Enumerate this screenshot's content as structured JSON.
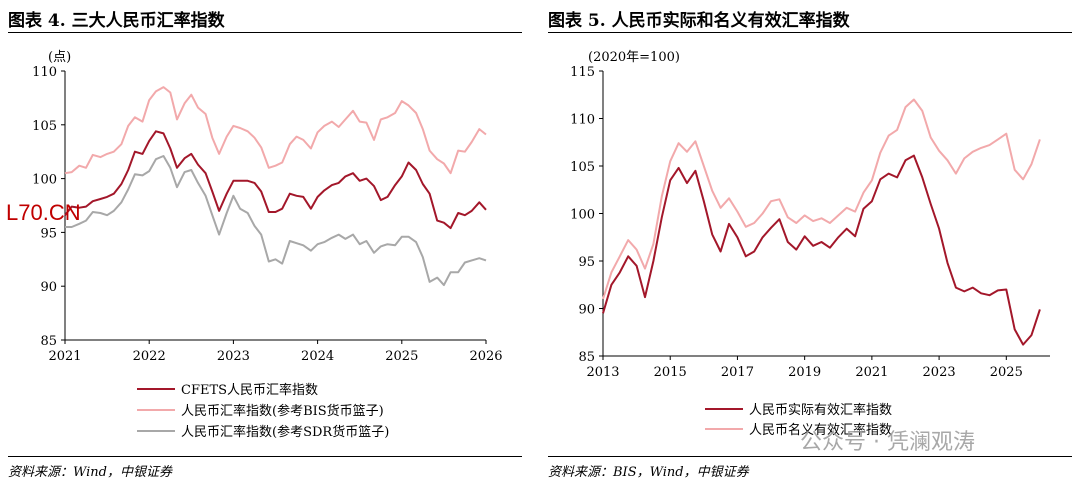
{
  "left": {
    "title": "图表 4. 三大人民币汇率指数",
    "source": "资料来源：Wind，中银证券"
  },
  "right": {
    "title": "图表 5. 人民币实际和名义有效汇率指数",
    "source": "资料来源：BIS，Wind，中银证券"
  },
  "overlay": {
    "logo": "L70.CN",
    "watermark": "公众号 · 凭澜观涛"
  },
  "chart_data": [
    {
      "type": "line",
      "unit_label": "(点)",
      "ylim": [
        85,
        110
      ],
      "yticks": [
        85,
        90,
        95,
        100,
        105,
        110
      ],
      "xlim": [
        2021,
        2026
      ],
      "xticks": [
        "2021",
        "2022",
        "2023",
        "2024",
        "2025",
        "2026"
      ],
      "grid": false,
      "legend_position": "bottom",
      "series": [
        {
          "name": "CFETS人民币汇率指数",
          "color": "#a3172a",
          "x": [
            2021.0,
            2021.08,
            2021.17,
            2021.25,
            2021.33,
            2021.42,
            2021.5,
            2021.58,
            2021.67,
            2021.75,
            2021.83,
            2021.92,
            2022.0,
            2022.08,
            2022.17,
            2022.25,
            2022.33,
            2022.42,
            2022.5,
            2022.58,
            2022.67,
            2022.75,
            2022.83,
            2022.92,
            2023.0,
            2023.08,
            2023.17,
            2023.25,
            2023.33,
            2023.42,
            2023.5,
            2023.58,
            2023.67,
            2023.75,
            2023.83,
            2023.92,
            2024.0,
            2024.08,
            2024.17,
            2024.25,
            2024.33,
            2024.42,
            2024.5,
            2024.58,
            2024.67,
            2024.75,
            2024.83,
            2024.92,
            2025.0,
            2025.08,
            2025.17,
            2025.25,
            2025.33,
            2025.42,
            2025.5,
            2025.58,
            2025.67,
            2025.75,
            2025.83,
            2025.92,
            2026.0
          ],
          "y": [
            96.6,
            97.4,
            97.3,
            97.4,
            97.9,
            98.1,
            98.3,
            98.6,
            99.5,
            100.8,
            102.5,
            102.3,
            103.5,
            104.4,
            104.2,
            102.8,
            101.0,
            101.9,
            102.3,
            101.3,
            100.5,
            98.8,
            97.0,
            98.6,
            99.8,
            99.8,
            99.8,
            99.6,
            98.8,
            96.9,
            96.9,
            97.2,
            98.6,
            98.4,
            98.3,
            97.2,
            98.3,
            98.9,
            99.4,
            99.6,
            100.2,
            100.5,
            99.8,
            100.0,
            99.3,
            98.0,
            98.3,
            99.4,
            100.2,
            101.5,
            100.8,
            99.5,
            98.6,
            96.1,
            95.9,
            95.4,
            96.8,
            96.6,
            97.0,
            97.8,
            97.1
          ]
        },
        {
          "name": "人民币汇率指数(参考BIS货币篮子)",
          "color": "#f2a9ab",
          "x": [
            2021.0,
            2021.08,
            2021.17,
            2021.25,
            2021.33,
            2021.42,
            2021.5,
            2021.58,
            2021.67,
            2021.75,
            2021.83,
            2021.92,
            2022.0,
            2022.08,
            2022.17,
            2022.25,
            2022.33,
            2022.42,
            2022.5,
            2022.58,
            2022.67,
            2022.75,
            2022.83,
            2022.92,
            2023.0,
            2023.08,
            2023.17,
            2023.25,
            2023.33,
            2023.42,
            2023.5,
            2023.58,
            2023.67,
            2023.75,
            2023.83,
            2023.92,
            2024.0,
            2024.08,
            2024.17,
            2024.25,
            2024.33,
            2024.42,
            2024.5,
            2024.58,
            2024.67,
            2024.75,
            2024.83,
            2024.92,
            2025.0,
            2025.08,
            2025.17,
            2025.25,
            2025.33,
            2025.42,
            2025.5,
            2025.58,
            2025.67,
            2025.75,
            2025.83,
            2025.92,
            2026.0
          ],
          "y": [
            100.5,
            100.6,
            101.2,
            101.0,
            102.2,
            102.0,
            102.3,
            102.5,
            103.2,
            104.9,
            105.7,
            105.3,
            107.3,
            108.1,
            108.5,
            108.0,
            105.5,
            107.0,
            107.8,
            106.6,
            106.0,
            103.8,
            102.3,
            103.9,
            104.9,
            104.7,
            104.4,
            103.8,
            102.9,
            101.0,
            101.2,
            101.5,
            103.2,
            103.9,
            103.6,
            102.8,
            104.3,
            104.9,
            105.3,
            104.8,
            105.5,
            106.3,
            105.3,
            105.2,
            103.6,
            105.5,
            105.7,
            106.1,
            107.2,
            106.8,
            106.1,
            104.6,
            102.6,
            101.8,
            101.4,
            100.5,
            102.6,
            102.5,
            103.4,
            104.6,
            104.1
          ]
        },
        {
          "name": "人民币汇率指数(参考SDR货币篮子)",
          "color": "#a8a8a8",
          "x": [
            2021.0,
            2021.08,
            2021.17,
            2021.25,
            2021.33,
            2021.42,
            2021.5,
            2021.58,
            2021.67,
            2021.75,
            2021.83,
            2021.92,
            2022.0,
            2022.08,
            2022.17,
            2022.25,
            2022.33,
            2022.42,
            2022.5,
            2022.58,
            2022.67,
            2022.75,
            2022.83,
            2022.92,
            2023.0,
            2023.08,
            2023.17,
            2023.25,
            2023.33,
            2023.42,
            2023.5,
            2023.58,
            2023.67,
            2023.75,
            2023.83,
            2023.92,
            2024.0,
            2024.08,
            2024.17,
            2024.25,
            2024.33,
            2024.42,
            2024.5,
            2024.58,
            2024.67,
            2024.75,
            2024.83,
            2024.92,
            2025.0,
            2025.08,
            2025.17,
            2025.25,
            2025.33,
            2025.42,
            2025.5,
            2025.58,
            2025.67,
            2025.75,
            2025.83,
            2025.92,
            2026.0
          ],
          "y": [
            95.5,
            95.5,
            95.8,
            96.1,
            96.9,
            96.8,
            96.6,
            97.0,
            97.8,
            99.0,
            100.4,
            100.3,
            100.7,
            101.8,
            102.1,
            101.0,
            99.2,
            100.6,
            100.8,
            99.6,
            98.4,
            96.6,
            94.8,
            96.8,
            98.4,
            97.2,
            96.8,
            95.6,
            94.8,
            92.3,
            92.5,
            92.1,
            94.2,
            94.0,
            93.8,
            93.3,
            93.9,
            94.1,
            94.5,
            94.8,
            94.4,
            94.8,
            93.9,
            94.2,
            93.1,
            93.7,
            93.9,
            93.8,
            94.6,
            94.6,
            94.1,
            92.7,
            90.4,
            90.8,
            90.1,
            91.3,
            91.3,
            92.2,
            92.4,
            92.6,
            92.4
          ]
        }
      ]
    },
    {
      "type": "line",
      "unit_label": "(2020年=100)",
      "ylim": [
        85,
        115
      ],
      "yticks": [
        85,
        90,
        95,
        100,
        105,
        110,
        115
      ],
      "xlim": [
        2013,
        2026.3
      ],
      "xticks": [
        "2013",
        "2015",
        "2017",
        "2019",
        "2021",
        "2023",
        "2025"
      ],
      "grid": false,
      "legend_position": "bottom",
      "series": [
        {
          "name": "人民币实际有效汇率指数",
          "color": "#a3172a",
          "x": [
            2013.0,
            2013.25,
            2013.5,
            2013.75,
            2014.0,
            2014.25,
            2014.5,
            2014.75,
            2015.0,
            2015.25,
            2015.5,
            2015.75,
            2016.0,
            2016.25,
            2016.5,
            2016.75,
            2017.0,
            2017.25,
            2017.5,
            2017.75,
            2018.0,
            2018.25,
            2018.5,
            2018.75,
            2019.0,
            2019.25,
            2019.5,
            2019.75,
            2020.0,
            2020.25,
            2020.5,
            2020.75,
            2021.0,
            2021.25,
            2021.5,
            2021.75,
            2022.0,
            2022.25,
            2022.5,
            2022.75,
            2023.0,
            2023.25,
            2023.5,
            2023.75,
            2024.0,
            2024.25,
            2024.5,
            2024.75,
            2025.0,
            2025.25,
            2025.5,
            2025.75,
            2026.0
          ],
          "y": [
            89.5,
            92.5,
            93.8,
            95.5,
            94.5,
            91.2,
            95.0,
            99.6,
            103.5,
            104.8,
            103.2,
            104.5,
            101.3,
            97.8,
            96.0,
            98.9,
            97.5,
            95.5,
            96.0,
            97.5,
            98.5,
            99.4,
            97.0,
            96.2,
            97.6,
            96.6,
            97.0,
            96.4,
            97.5,
            98.4,
            97.6,
            100.5,
            101.3,
            103.6,
            104.2,
            103.8,
            105.6,
            106.1,
            103.8,
            101.0,
            98.4,
            94.8,
            92.2,
            91.8,
            92.2,
            91.6,
            91.4,
            91.9,
            92.0,
            87.8,
            86.2,
            87.2,
            89.9
          ]
        },
        {
          "name": "人民币名义有效汇率指数",
          "color": "#f2a9ab",
          "x": [
            2013.0,
            2013.25,
            2013.5,
            2013.75,
            2014.0,
            2014.25,
            2014.5,
            2014.75,
            2015.0,
            2015.25,
            2015.5,
            2015.75,
            2016.0,
            2016.25,
            2016.5,
            2016.75,
            2017.0,
            2017.25,
            2017.5,
            2017.75,
            2018.0,
            2018.25,
            2018.5,
            2018.75,
            2019.0,
            2019.25,
            2019.5,
            2019.75,
            2020.0,
            2020.25,
            2020.5,
            2020.75,
            2021.0,
            2021.25,
            2021.5,
            2021.75,
            2022.0,
            2022.25,
            2022.5,
            2022.75,
            2023.0,
            2023.25,
            2023.5,
            2023.75,
            2024.0,
            2024.25,
            2024.5,
            2024.75,
            2025.0,
            2025.25,
            2025.5,
            2025.75,
            2026.0
          ],
          "y": [
            91.0,
            93.8,
            95.5,
            97.2,
            96.2,
            94.2,
            96.8,
            101.8,
            105.5,
            107.4,
            106.5,
            107.6,
            105.0,
            102.4,
            100.6,
            101.6,
            100.2,
            98.6,
            99.0,
            100.0,
            101.3,
            101.5,
            99.6,
            99.0,
            99.8,
            99.2,
            99.5,
            99.0,
            99.8,
            100.6,
            100.2,
            102.2,
            103.5,
            106.4,
            108.2,
            108.8,
            111.2,
            112.0,
            110.8,
            108.0,
            106.6,
            105.6,
            104.2,
            105.8,
            106.5,
            106.9,
            107.2,
            107.8,
            108.4,
            104.6,
            103.6,
            105.2,
            107.8
          ]
        }
      ]
    }
  ]
}
